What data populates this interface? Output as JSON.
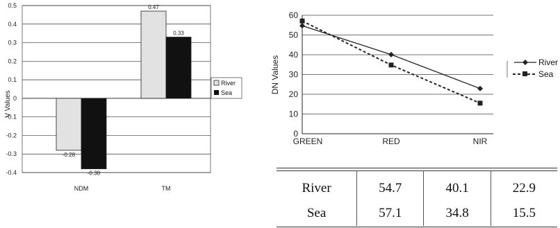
{
  "chart_data": [
    {
      "type": "bar",
      "categories": [
        "NDM",
        "TM"
      ],
      "series": [
        {
          "name": "River",
          "values": [
            -0.28,
            0.47
          ],
          "value_labels": [
            "-0.28",
            "0.47"
          ]
        },
        {
          "name": "Sea",
          "values": [
            -0.38,
            0.33
          ],
          "value_labels": [
            "-0.38",
            "0.33"
          ]
        }
      ],
      "ylabel": "V Values",
      "xlabel": "",
      "ylim": [
        -0.4,
        0.5
      ],
      "yticks": [
        "0.5",
        "0.4",
        "0.3",
        "0.2",
        "0.1",
        "0",
        "-0.1",
        "-0.2",
        "-0.3",
        "-0.4"
      ],
      "legend_position": "right",
      "grid": true
    },
    {
      "type": "line",
      "categories": [
        "GREEN",
        "RED",
        "NIR"
      ],
      "series": [
        {
          "name": "River",
          "values": [
            54.7,
            40.1,
            22.9
          ]
        },
        {
          "name": "Sea",
          "values": [
            57.1,
            34.8,
            15.5
          ]
        }
      ],
      "ylabel": "DN Values",
      "xlabel": "",
      "ylim": [
        0,
        60
      ],
      "yticks": [
        "0",
        "10",
        "20",
        "30",
        "40",
        "50",
        "60"
      ],
      "legend_position": "right",
      "grid": true
    }
  ],
  "table": {
    "rows": [
      {
        "label": "River",
        "cells": [
          "54.7",
          "40.1",
          "22.9"
        ]
      },
      {
        "label": "Sea",
        "cells": [
          "57.1",
          "34.8",
          "15.5"
        ]
      }
    ]
  },
  "colors": {
    "river_bar": "#e2e2e2",
    "sea_bar": "#111111",
    "line": "#222222",
    "grid": "#333333"
  }
}
